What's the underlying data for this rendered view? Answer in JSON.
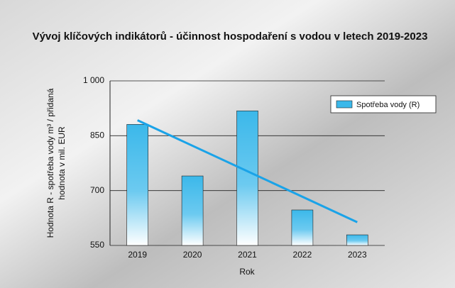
{
  "chart_data": {
    "type": "bar",
    "title": "Vývoj klíčových indikátorů - účinnost hospodaření s vodou v letech 2019-2023",
    "x_label": "Rok",
    "y_label": [
      "Hodnota R - spotřeba vody m³ / přidaná",
      "hodnota v mil. EUR"
    ],
    "categories": [
      "2019",
      "2020",
      "2021",
      "2022",
      "2023"
    ],
    "series": [
      {
        "name": "Spotřeba vody (R)",
        "color": "#3bb8ea",
        "values": [
          881,
          740,
          918,
          647,
          579
        ]
      }
    ],
    "trendline": true,
    "trendline_color": "#1aa3e8",
    "ylim": [
      550,
      1000
    ],
    "yticks": [
      550,
      700,
      850,
      {
        "value": 1000,
        "label": "1 000"
      }
    ],
    "grid": true,
    "legend": "top-right"
  }
}
